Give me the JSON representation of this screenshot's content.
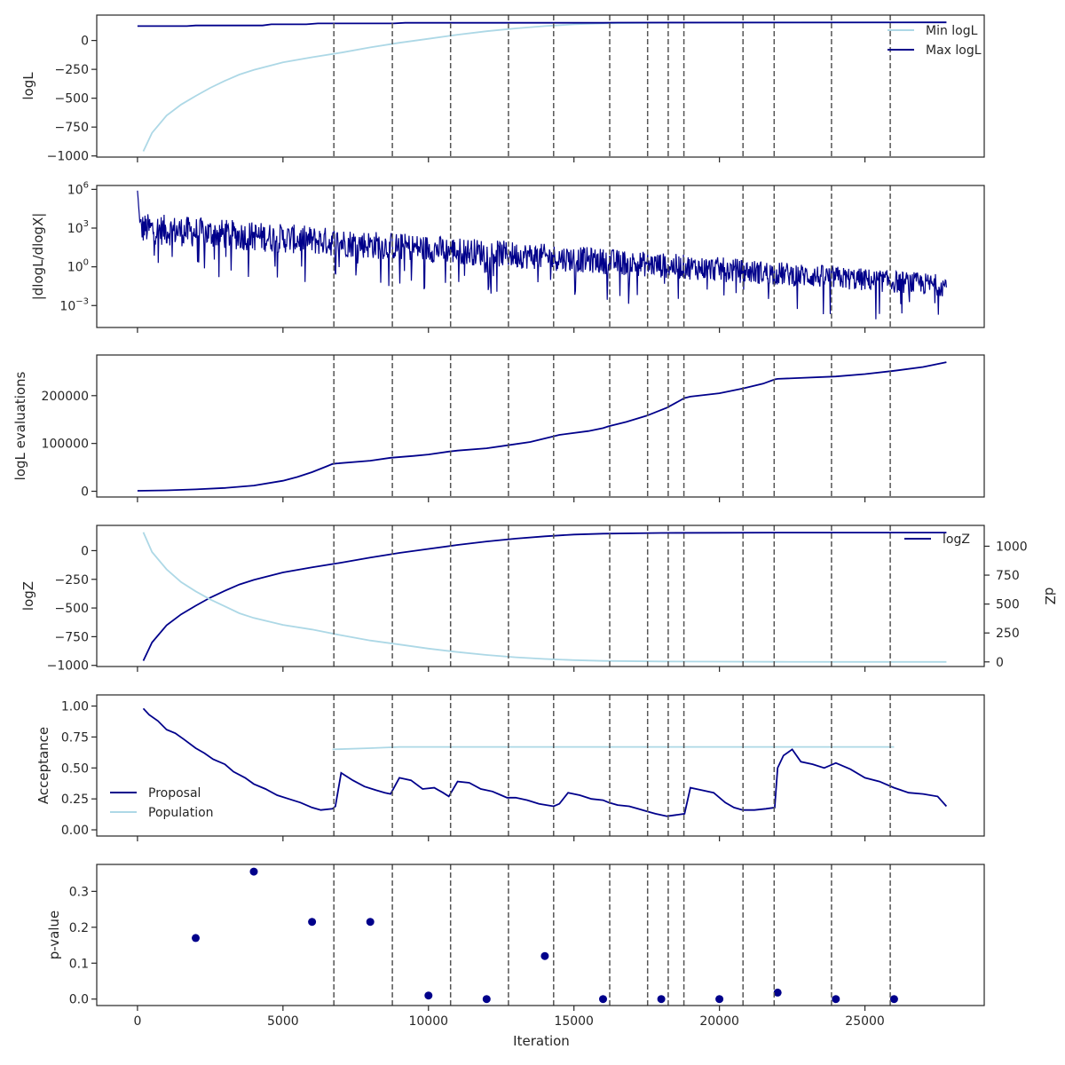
{
  "colors": {
    "dark": "#00008b",
    "light": "#add8e6",
    "frame": "#262626",
    "vline": "#555555",
    "background": "#ffffff"
  },
  "chart_data": [
    {
      "type": "line",
      "ylabel": "logL",
      "xlim": [
        -1400,
        29100
      ],
      "ylim": [
        -1010,
        220
      ],
      "yticks": [
        {
          "v": 0,
          "t": "0"
        },
        {
          "v": -250,
          "t": "−250"
        },
        {
          "v": -500,
          "t": "−500"
        },
        {
          "v": -750,
          "t": "−750"
        },
        {
          "v": -1000,
          "t": "−1000"
        }
      ],
      "legend": "top-right",
      "series": [
        {
          "name": "Min logL",
          "color": "light",
          "x": [
            200,
            500,
            1000,
            1500,
            2000,
            2500,
            3000,
            3500,
            4000,
            5000,
            6000,
            7000,
            8000,
            9000,
            10000,
            11000,
            12000,
            13000,
            14000,
            15000,
            16000,
            18000,
            20000,
            22000,
            25000,
            27800
          ],
          "y": [
            -960,
            -800,
            -650,
            -555,
            -480,
            -410,
            -350,
            -295,
            -255,
            -190,
            -145,
            -105,
            -60,
            -20,
            15,
            50,
            80,
            105,
            125,
            140,
            148,
            154,
            156,
            157,
            157,
            157
          ]
        },
        {
          "name": "Max logL",
          "color": "dark",
          "x": [
            0,
            1700,
            2000,
            4300,
            4600,
            5800,
            6200,
            8800,
            9200,
            16000,
            16500,
            27800
          ],
          "y": [
            125,
            125,
            130,
            130,
            140,
            140,
            148,
            148,
            153,
            153,
            155,
            157
          ]
        }
      ]
    },
    {
      "type": "line",
      "ylabel": "|dlogL/dlogX|",
      "xlim": [
        -1400,
        29100
      ],
      "yscale": "log",
      "ylim": [
        -4.7,
        6.3
      ],
      "yticks": [
        {
          "v": 6,
          "t": "10",
          "e": "6"
        },
        {
          "v": 3,
          "t": "10",
          "e": "3"
        },
        {
          "v": 0,
          "t": "10",
          "e": "0"
        },
        {
          "v": -3,
          "t": "10",
          "e": "−3"
        }
      ],
      "series": [
        {
          "name": "",
          "color": "dark",
          "x": [
            0,
            27800
          ],
          "upper": [
            4.2,
            -0.6
          ],
          "lower": [
            1.8,
            -2.3
          ],
          "x_range": [
            0,
            27800
          ]
        }
      ]
    },
    {
      "type": "line",
      "ylabel": "logL evaluations",
      "xlim": [
        -1400,
        29100
      ],
      "ylim": [
        -12000,
        285000
      ],
      "yticks": [
        {
          "v": 0,
          "t": "0"
        },
        {
          "v": 100000,
          "t": "100000"
        },
        {
          "v": 200000,
          "t": "200000"
        }
      ],
      "series": [
        {
          "name": "",
          "color": "dark",
          "x": [
            0,
            1000,
            2000,
            3000,
            4000,
            5000,
            5500,
            6000,
            6500,
            6700,
            6800,
            8000,
            8700,
            9500,
            10000,
            10700,
            11000,
            12000,
            12700,
            13500,
            14300,
            14500,
            15500,
            16000,
            16200,
            16800,
            17500,
            18200,
            18800,
            19000,
            20000,
            20800,
            21500,
            21900,
            22000,
            24000,
            25000,
            26000,
            27000,
            27800
          ],
          "y": [
            1000,
            2000,
            4000,
            7000,
            12000,
            22000,
            30000,
            40000,
            52000,
            57000,
            58000,
            64000,
            70000,
            74000,
            77000,
            83000,
            85000,
            90000,
            96000,
            103000,
            115000,
            118000,
            126000,
            132000,
            136000,
            145000,
            158000,
            175000,
            195000,
            198000,
            205000,
            215000,
            225000,
            234000,
            235000,
            240000,
            245000,
            252000,
            260000,
            270000
          ]
        }
      ]
    },
    {
      "type": "line",
      "ylabel": "logZ",
      "ylabel2": "dZ",
      "xlim": [
        -1400,
        29100
      ],
      "ylim": [
        -1010,
        220
      ],
      "ylim2": [
        -40,
        1180
      ],
      "yticks": [
        {
          "v": 0,
          "t": "0"
        },
        {
          "v": -250,
          "t": "−250"
        },
        {
          "v": -500,
          "t": "−500"
        },
        {
          "v": -750,
          "t": "−750"
        },
        {
          "v": -1000,
          "t": "−1000"
        }
      ],
      "yticks2": [
        {
          "v": 0,
          "t": "0"
        },
        {
          "v": 250,
          "t": "250"
        },
        {
          "v": 500,
          "t": "500"
        },
        {
          "v": 750,
          "t": "750"
        },
        {
          "v": 1000,
          "t": "1000"
        }
      ],
      "legend": "top-right",
      "series": [
        {
          "name": "logZ",
          "color": "dark",
          "axis": "left",
          "x": [
            200,
            500,
            1000,
            1500,
            2000,
            2500,
            3000,
            3500,
            4000,
            5000,
            6000,
            7000,
            8000,
            9000,
            10000,
            11000,
            12000,
            13000,
            14000,
            15000,
            16000,
            18000,
            20000,
            22000,
            25000,
            27800
          ],
          "y": [
            -960,
            -800,
            -650,
            -555,
            -480,
            -410,
            -350,
            -295,
            -255,
            -190,
            -145,
            -105,
            -60,
            -20,
            15,
            50,
            80,
            105,
            125,
            140,
            148,
            154,
            156,
            157,
            157,
            157
          ]
        },
        {
          "name": "",
          "color": "light",
          "axis": "right",
          "x": [
            200,
            500,
            1000,
            1500,
            2000,
            2500,
            3000,
            3500,
            4000,
            5000,
            6000,
            7000,
            8000,
            9000,
            10000,
            11000,
            12000,
            13000,
            14000,
            15000,
            16000,
            18000,
            20000,
            22000,
            25000,
            27800
          ],
          "y": [
            1120,
            950,
            800,
            690,
            610,
            540,
            480,
            420,
            380,
            320,
            280,
            230,
            185,
            150,
            115,
            85,
            60,
            40,
            25,
            15,
            8,
            4,
            2,
            1,
            0,
            0
          ]
        }
      ]
    },
    {
      "type": "line",
      "ylabel": "Acceptance",
      "xlim": [
        -1400,
        29100
      ],
      "ylim": [
        -0.05,
        1.09
      ],
      "yticks": [
        {
          "v": 0,
          "t": "0.00"
        },
        {
          "v": 0.25,
          "t": "0.25"
        },
        {
          "v": 0.5,
          "t": "0.50"
        },
        {
          "v": 0.75,
          "t": "0.75"
        },
        {
          "v": 1.0,
          "t": "1.00"
        }
      ],
      "legend": "bottom-left",
      "series": [
        {
          "name": "Proposal",
          "color": "dark",
          "x": [
            200,
            400,
            700,
            1000,
            1300,
            1600,
            2000,
            2300,
            2600,
            3000,
            3300,
            3700,
            4000,
            4400,
            4800,
            5200,
            5600,
            6000,
            6300,
            6700,
            6800,
            7000,
            7400,
            7800,
            8200,
            8500,
            8700,
            9000,
            9400,
            9800,
            10200,
            10500,
            10700,
            11000,
            11400,
            11800,
            12200,
            12500,
            12700,
            13000,
            13400,
            13800,
            14300,
            14500,
            14800,
            15200,
            15600,
            16000,
            16200,
            16500,
            16900,
            17200,
            17500,
            17800,
            18200,
            18500,
            18800,
            19000,
            19400,
            19800,
            20200,
            20500,
            20800,
            21200,
            21600,
            21900,
            22000,
            22200,
            22500,
            22800,
            23200,
            23600,
            24000,
            24500,
            25000,
            25500,
            26000,
            26500,
            27000,
            27500,
            27800
          ],
          "y": [
            0.98,
            0.93,
            0.88,
            0.81,
            0.78,
            0.73,
            0.66,
            0.62,
            0.57,
            0.53,
            0.47,
            0.42,
            0.37,
            0.33,
            0.28,
            0.25,
            0.22,
            0.18,
            0.16,
            0.17,
            0.19,
            0.46,
            0.4,
            0.35,
            0.32,
            0.3,
            0.29,
            0.42,
            0.4,
            0.33,
            0.34,
            0.3,
            0.27,
            0.39,
            0.38,
            0.33,
            0.31,
            0.28,
            0.26,
            0.26,
            0.24,
            0.21,
            0.19,
            0.21,
            0.3,
            0.28,
            0.25,
            0.24,
            0.22,
            0.2,
            0.19,
            0.17,
            0.15,
            0.13,
            0.11,
            0.12,
            0.13,
            0.34,
            0.32,
            0.3,
            0.22,
            0.18,
            0.16,
            0.16,
            0.17,
            0.18,
            0.5,
            0.6,
            0.65,
            0.55,
            0.53,
            0.5,
            0.54,
            0.49,
            0.42,
            0.39,
            0.34,
            0.3,
            0.29,
            0.27,
            0.19
          ]
        },
        {
          "name": "Population",
          "color": "light",
          "x": [
            6700,
            8000,
            9000,
            12000,
            15000,
            18000,
            21000,
            24000,
            26000
          ],
          "y": [
            0.65,
            0.66,
            0.67,
            0.67,
            0.67,
            0.67,
            0.67,
            0.67,
            0.67
          ]
        }
      ]
    },
    {
      "type": "scatter",
      "ylabel": "p-value",
      "xlabel": "Iteration",
      "xlim": [
        -1400,
        29100
      ],
      "ylim": [
        -0.018,
        0.375
      ],
      "yticks": [
        {
          "v": 0,
          "t": "0.0"
        },
        {
          "v": 0.1,
          "t": "0.1"
        },
        {
          "v": 0.2,
          "t": "0.2"
        },
        {
          "v": 0.3,
          "t": "0.3"
        }
      ],
      "xticks": [
        {
          "v": 0,
          "t": "0"
        },
        {
          "v": 5000,
          "t": "5000"
        },
        {
          "v": 10000,
          "t": "10000"
        },
        {
          "v": 15000,
          "t": "15000"
        },
        {
          "v": 20000,
          "t": "20000"
        },
        {
          "v": 25000,
          "t": "25000"
        }
      ],
      "series": [
        {
          "name": "",
          "color": "dark",
          "x": [
            2000,
            4000,
            6000,
            8000,
            10000,
            12000,
            14000,
            16000,
            18000,
            20000,
            22000,
            24000,
            26000
          ],
          "y": [
            0.17,
            0.355,
            0.215,
            0.215,
            0.01,
            0.0,
            0.12,
            0.0,
            0.0,
            0.0,
            0.018,
            0.0,
            0.0
          ]
        }
      ]
    }
  ],
  "vlines": [
    6750,
    8760,
    10760,
    12750,
    14300,
    16230,
    17530,
    18240,
    18780,
    20810,
    21880,
    23850,
    25870
  ]
}
